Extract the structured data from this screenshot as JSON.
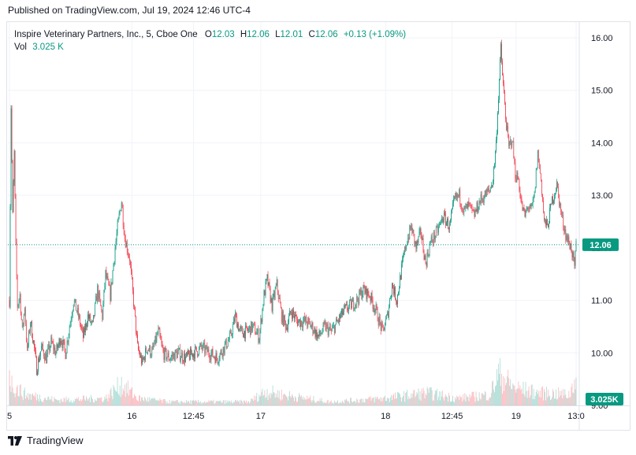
{
  "header": {
    "published": "Published on TradingView.com, Jul 19, 2024 12:46 UTC-4"
  },
  "legend": {
    "symbol": "Inspire Veterinary Partners, Inc., 5, Cboe One",
    "o_label": "O",
    "o_value": "12.03",
    "h_label": "H",
    "h_value": "12.06",
    "l_label": "L",
    "l_value": "12.01",
    "c_label": "C",
    "c_value": "12.06",
    "change": "+0.13 (+1.09%)",
    "vol_label": "Vol",
    "vol_value": "3.025 K"
  },
  "footer": {
    "brand": "TradingView",
    "logo_icon": "tradingview-logo-icon"
  },
  "colors": {
    "up": "#089981",
    "down": "#f23645",
    "grid": "#f0f3fa",
    "line": "#089981"
  },
  "chart_data": {
    "type": "candlestick",
    "ylim": [
      9.0,
      16.3
    ],
    "y_ticks": [
      "16.00",
      "15.00",
      "14.00",
      "13.00",
      "12.00",
      "11.00",
      "10.00",
      "9.00"
    ],
    "y_tick_values": [
      16,
      15,
      14,
      13,
      12,
      11,
      10,
      9
    ],
    "x_ticks": [
      "5",
      "16",
      "12:45",
      "17",
      "18",
      "12:45",
      "19",
      "13:0"
    ],
    "x_tick_bars": [
      0,
      153,
      230,
      314,
      470,
      553,
      633,
      708
    ],
    "current_price": 12.06,
    "current_price_label": "12.06",
    "volume_label": "3.025K",
    "anchors": [
      [
        0,
        11.0
      ],
      [
        2,
        14.7
      ],
      [
        4,
        12.6
      ],
      [
        6,
        13.8
      ],
      [
        8,
        12.0
      ],
      [
        10,
        10.9
      ],
      [
        13,
        11.1
      ],
      [
        16,
        10.4
      ],
      [
        19,
        10.9
      ],
      [
        22,
        10.0
      ],
      [
        26,
        10.6
      ],
      [
        30,
        10.2
      ],
      [
        34,
        9.7
      ],
      [
        40,
        10.1
      ],
      [
        46,
        9.9
      ],
      [
        52,
        10.2
      ],
      [
        58,
        10.0
      ],
      [
        64,
        10.3
      ],
      [
        70,
        10.0
      ],
      [
        76,
        10.6
      ],
      [
        80,
        11.0
      ],
      [
        86,
        10.7
      ],
      [
        92,
        10.3
      ],
      [
        98,
        10.7
      ],
      [
        104,
        10.5
      ],
      [
        110,
        11.2
      ],
      [
        116,
        10.7
      ],
      [
        120,
        11.5
      ],
      [
        126,
        11.1
      ],
      [
        132,
        12.0
      ],
      [
        136,
        12.5
      ],
      [
        140,
        12.9
      ],
      [
        144,
        12.2
      ],
      [
        150,
        11.8
      ],
      [
        156,
        10.8
      ],
      [
        160,
        10.1
      ],
      [
        166,
        9.8
      ],
      [
        172,
        10.1
      ],
      [
        178,
        10.0
      ],
      [
        186,
        10.4
      ],
      [
        192,
        10.0
      ],
      [
        200,
        9.9
      ],
      [
        210,
        10.0
      ],
      [
        220,
        9.9
      ],
      [
        230,
        10.0
      ],
      [
        240,
        10.1
      ],
      [
        250,
        10.0
      ],
      [
        260,
        9.9
      ],
      [
        268,
        10.1
      ],
      [
        276,
        10.3
      ],
      [
        282,
        10.7
      ],
      [
        288,
        10.4
      ],
      [
        296,
        10.4
      ],
      [
        304,
        10.5
      ],
      [
        312,
        10.3
      ],
      [
        318,
        11.1
      ],
      [
        322,
        11.4
      ],
      [
        328,
        10.9
      ],
      [
        334,
        11.3
      ],
      [
        340,
        10.7
      ],
      [
        346,
        10.5
      ],
      [
        352,
        10.8
      ],
      [
        360,
        10.6
      ],
      [
        370,
        10.6
      ],
      [
        378,
        10.5
      ],
      [
        386,
        10.3
      ],
      [
        394,
        10.5
      ],
      [
        402,
        10.4
      ],
      [
        410,
        10.6
      ],
      [
        418,
        10.8
      ],
      [
        426,
        10.9
      ],
      [
        434,
        11.0
      ],
      [
        442,
        11.2
      ],
      [
        450,
        11.1
      ],
      [
        458,
        10.8
      ],
      [
        466,
        10.4
      ],
      [
        472,
        10.7
      ],
      [
        478,
        11.3
      ],
      [
        484,
        11.0
      ],
      [
        490,
        11.6
      ],
      [
        496,
        12.1
      ],
      [
        502,
        12.4
      ],
      [
        508,
        12.0
      ],
      [
        514,
        12.3
      ],
      [
        520,
        11.7
      ],
      [
        526,
        12.1
      ],
      [
        534,
        12.3
      ],
      [
        542,
        12.6
      ],
      [
        550,
        12.4
      ],
      [
        556,
        12.9
      ],
      [
        562,
        13.0
      ],
      [
        568,
        12.7
      ],
      [
        574,
        12.8
      ],
      [
        580,
        12.6
      ],
      [
        588,
        12.9
      ],
      [
        594,
        13.0
      ],
      [
        600,
        13.1
      ],
      [
        604,
        13.3
      ],
      [
        608,
        14.0
      ],
      [
        612,
        15.2
      ],
      [
        614,
        15.8
      ],
      [
        616,
        15.3
      ],
      [
        620,
        14.5
      ],
      [
        624,
        13.9
      ],
      [
        628,
        14.1
      ],
      [
        632,
        13.4
      ],
      [
        636,
        13.3
      ],
      [
        640,
        12.8
      ],
      [
        644,
        12.6
      ],
      [
        648,
        12.8
      ],
      [
        652,
        12.7
      ],
      [
        656,
        13.0
      ],
      [
        660,
        13.8
      ],
      [
        664,
        13.3
      ],
      [
        668,
        12.5
      ],
      [
        672,
        12.4
      ],
      [
        678,
        12.9
      ],
      [
        684,
        13.2
      ],
      [
        690,
        12.6
      ],
      [
        696,
        12.2
      ],
      [
        702,
        12.0
      ],
      [
        706,
        11.6
      ],
      [
        708,
        12.06
      ]
    ],
    "volume_anchors": [
      [
        0,
        0.9
      ],
      [
        3,
        0.6
      ],
      [
        8,
        0.5
      ],
      [
        20,
        0.3
      ],
      [
        60,
        0.15
      ],
      [
        120,
        0.2
      ],
      [
        140,
        0.6
      ],
      [
        160,
        0.2
      ],
      [
        200,
        0.1
      ],
      [
        300,
        0.1
      ],
      [
        320,
        0.4
      ],
      [
        340,
        0.3
      ],
      [
        400,
        0.1
      ],
      [
        470,
        0.2
      ],
      [
        520,
        0.35
      ],
      [
        560,
        0.2
      ],
      [
        600,
        0.3
      ],
      [
        612,
        0.9
      ],
      [
        630,
        0.5
      ],
      [
        660,
        0.35
      ],
      [
        700,
        0.3
      ],
      [
        708,
        0.9
      ]
    ],
    "bar_count": 709
  }
}
